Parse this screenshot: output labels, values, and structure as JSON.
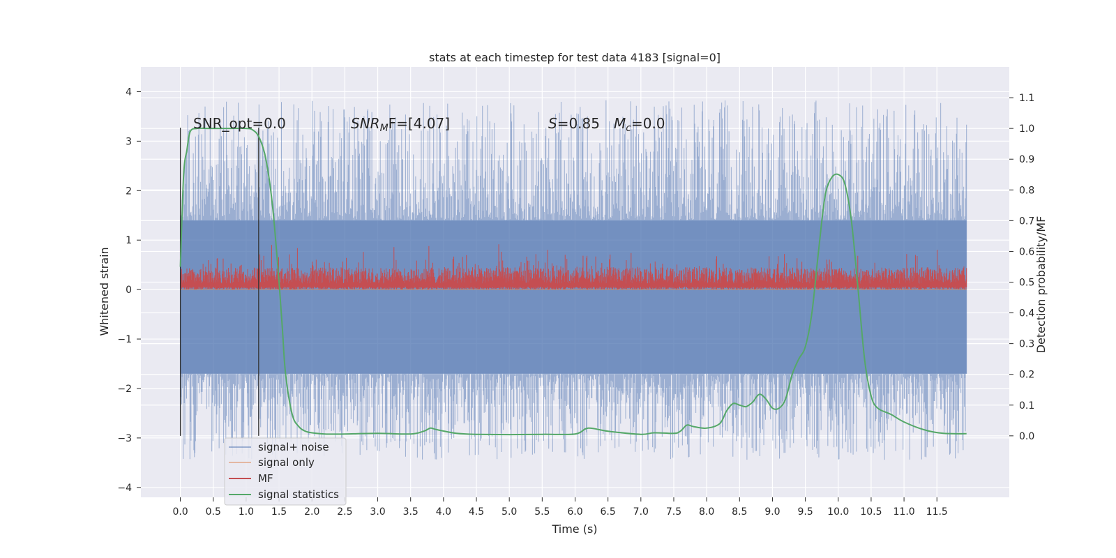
{
  "chart_data": {
    "type": "line",
    "title": "stats at each timestep for test data 4183 [signal=0]",
    "xlabel": "Time (s)",
    "ylabel": "Whitened strain",
    "y2label": "Detection probability/MF",
    "xlim": [
      -0.6,
      12.6
    ],
    "ylim": [
      -4.2,
      4.5
    ],
    "y2lim": [
      -0.2,
      1.2
    ],
    "x_ticks": [
      0.0,
      0.5,
      1.0,
      1.5,
      2.0,
      2.5,
      3.0,
      3.5,
      4.0,
      4.5,
      5.0,
      5.5,
      6.0,
      6.5,
      7.0,
      7.5,
      8.0,
      8.5,
      9.0,
      9.5,
      10.0,
      10.5,
      11.0,
      11.5
    ],
    "x_tick_labels": [
      "0.0",
      "0.5",
      "1.0",
      "1.5",
      "2.0",
      "2.5",
      "3.0",
      "3.5",
      "4.0",
      "4.5",
      "5.0",
      "5.5",
      "6.0",
      "6.5",
      "7.0",
      "7.5",
      "8.0",
      "8.5",
      "9.0",
      "9.5",
      "10.0",
      "10.5",
      "11.0",
      "11.5"
    ],
    "y_ticks": [
      -4,
      -3,
      -2,
      -1,
      0,
      1,
      2,
      3,
      4
    ],
    "y_tick_labels": [
      "−4",
      "−3",
      "−2",
      "−1",
      "0",
      "1",
      "2",
      "3",
      "4"
    ],
    "y2_ticks": [
      0.0,
      0.1,
      0.2,
      0.3,
      0.4,
      0.5,
      0.6,
      0.7,
      0.8,
      0.9,
      1.0,
      1.1
    ],
    "y2_tick_labels": [
      "0.0",
      "0.1",
      "0.2",
      "0.3",
      "0.4",
      "0.5",
      "0.6",
      "0.7",
      "0.8",
      "0.9",
      "1.0",
      "1.1"
    ],
    "grid": true,
    "legend_position": "lower-left",
    "annotations": {
      "snr_opt": "SNR_opt=0.0",
      "snr_mf_label": "SNR",
      "snr_mf_sub": "M",
      "snr_mf_value": "F=[4.07]",
      "s_label": "S",
      "s_value": "=0.85",
      "mc_label": "M",
      "mc_sub": "c",
      "mc_value": "=0.0"
    },
    "vertical_markers": [
      0.0,
      1.19
    ],
    "series": [
      {
        "name": "signal+ noise",
        "color": "#4c72b0",
        "opacity": 0.5,
        "axis": "left",
        "envelope": {
          "x_start": 0.0,
          "x_end": 11.95,
          "core_upper": 1.4,
          "core_lower": -1.7,
          "peak_upper": 4.1,
          "peak_lower": -3.75
        }
      },
      {
        "name": "signal only",
        "color": "#dd8452",
        "opacity": 0.5,
        "axis": "left",
        "constant": 0.0
      },
      {
        "name": "MF",
        "color": "#c44e52",
        "axis": "left",
        "envelope": {
          "x_start": 0.0,
          "x_end": 11.95,
          "baseline": 0.0,
          "typical_upper": 0.45,
          "peak_upper": 0.95
        }
      },
      {
        "name": "signal statistics",
        "color": "#55a868",
        "axis": "right",
        "x": [
          0.0,
          0.05,
          0.1,
          0.15,
          0.25,
          0.4,
          0.6,
          0.8,
          1.0,
          1.1,
          1.2,
          1.3,
          1.4,
          1.5,
          1.55,
          1.6,
          1.7,
          1.8,
          1.9,
          2.0,
          2.2,
          2.5,
          3.0,
          3.5,
          3.7,
          3.8,
          3.9,
          4.2,
          4.5,
          5.0,
          5.5,
          6.0,
          6.2,
          6.5,
          7.0,
          7.2,
          7.5,
          7.6,
          7.7,
          7.8,
          8.0,
          8.2,
          8.3,
          8.4,
          8.5,
          8.6,
          8.7,
          8.8,
          8.9,
          9.0,
          9.1,
          9.2,
          9.3,
          9.4,
          9.5,
          9.6,
          9.7,
          9.8,
          9.9,
          10.0,
          10.1,
          10.2,
          10.3,
          10.4,
          10.5,
          10.6,
          10.8,
          11.0,
          11.3,
          11.6,
          11.95
        ],
        "y": [
          0.55,
          0.85,
          0.93,
          0.99,
          1.0,
          1.0,
          1.0,
          1.0,
          1.0,
          0.995,
          0.97,
          0.9,
          0.75,
          0.5,
          0.35,
          0.2,
          0.07,
          0.03,
          0.015,
          0.01,
          0.006,
          0.006,
          0.008,
          0.006,
          0.015,
          0.025,
          0.02,
          0.008,
          0.005,
          0.004,
          0.005,
          0.006,
          0.025,
          0.015,
          0.005,
          0.01,
          0.008,
          0.015,
          0.035,
          0.03,
          0.025,
          0.04,
          0.08,
          0.105,
          0.1,
          0.095,
          0.11,
          0.135,
          0.12,
          0.09,
          0.09,
          0.12,
          0.2,
          0.25,
          0.29,
          0.4,
          0.6,
          0.78,
          0.84,
          0.85,
          0.82,
          0.7,
          0.48,
          0.25,
          0.13,
          0.09,
          0.07,
          0.045,
          0.02,
          0.008,
          0.007
        ]
      }
    ]
  }
}
